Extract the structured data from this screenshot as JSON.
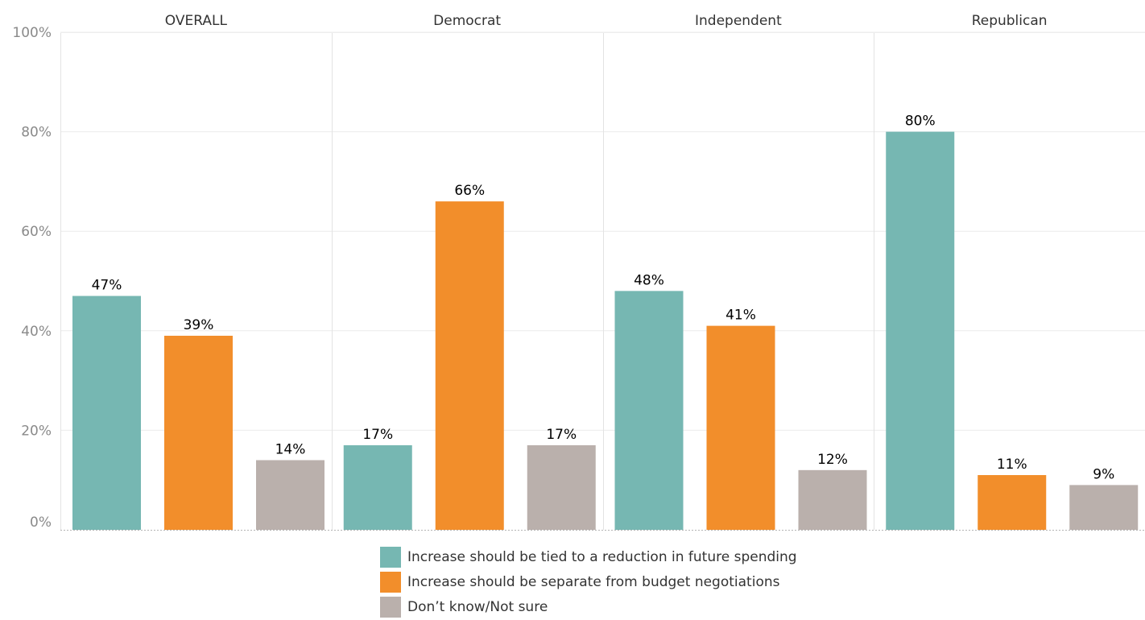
{
  "chart_data": {
    "type": "bar",
    "panels": [
      "OVERALL",
      "Democrat",
      "Independent",
      "Republican"
    ],
    "series": [
      {
        "name": "Increase should be tied to a reduction in future spending",
        "color": "#76b7b2",
        "values": [
          47,
          17,
          48,
          80
        ]
      },
      {
        "name": "Increase should be separate from budget negotiations",
        "color": "#f28e2b",
        "values": [
          39,
          66,
          41,
          11
        ]
      },
      {
        "name": "Don’t know/Not sure",
        "color": "#bab0ac",
        "values": [
          14,
          17,
          12,
          9
        ]
      }
    ],
    "ylim": [
      0,
      100
    ],
    "yticks": [
      0,
      20,
      40,
      60,
      80,
      100
    ],
    "ytick_labels": [
      "0%",
      "20%",
      "40%",
      "60%",
      "80%",
      "100%"
    ],
    "data_label_suffix": "%",
    "grid": true,
    "legend_position": "bottom"
  }
}
